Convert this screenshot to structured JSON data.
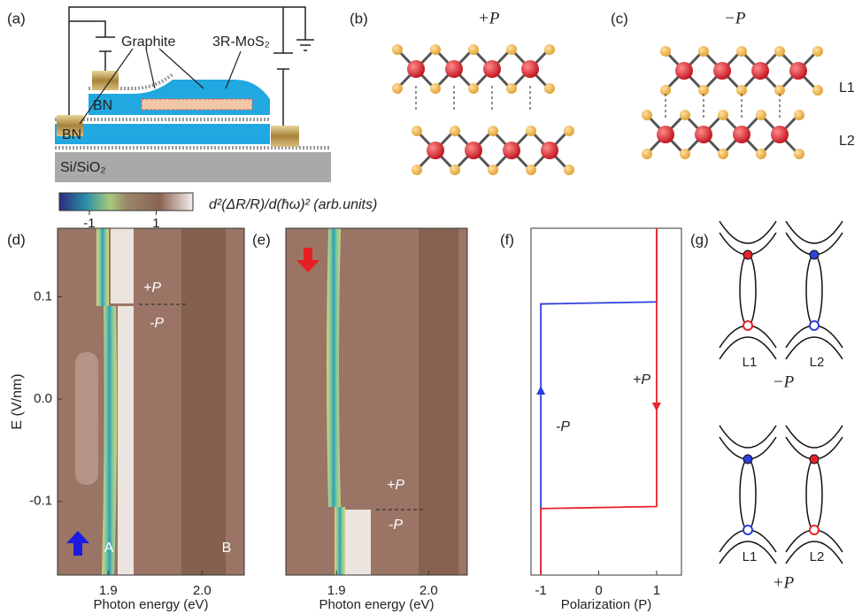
{
  "panel_labels": [
    "(a)",
    "(b)",
    "(c)",
    "(d)",
    "(e)",
    "(f)",
    "(g)"
  ],
  "schematic": {
    "graphite": "Graphite",
    "mos2": "3R-MoS₂",
    "bn_top": "BN",
    "bn_bottom": "BN",
    "substrate": "Si/SiO₂"
  },
  "structures": {
    "b_title": "+P",
    "c_title": "−P",
    "layer1": "L1",
    "layer2": "L2"
  },
  "colorbar": {
    "label": "d²(ΔR/R)/d(ħω)² (arb.units)",
    "lim": [
      -1.9,
      2.1
    ],
    "ticks": [
      -1,
      1
    ]
  },
  "heatmaps": [
    {
      "xlim": [
        1.846,
        2.045
      ],
      "ylim": [
        -0.172,
        0.167
      ],
      "xticks": [
        1.9,
        {
          "value": 2,
          "label": "2.0"
        }
      ],
      "yticks": [
        0.1,
        {
          "value": 0,
          "label": "0.0"
        },
        -0.1
      ],
      "ylabel": "E (V/nm)",
      "xlabel": "Photon energy (eV)",
      "annotations": [
        "+P",
        "-P",
        "A",
        "B"
      ]
    },
    {
      "xlim": [
        1.845,
        2.042
      ],
      "ylim": [
        -0.172,
        0.167
      ],
      "xticks": [
        1.9,
        {
          "value": 2,
          "label": "2.0"
        }
      ],
      "xlabel": "Photon energy (eV)",
      "annotations": [
        "+P",
        "-P"
      ]
    }
  ],
  "chart_data": {
    "type": "line",
    "xlabel": "Polarization (P)",
    "xlim": [
      -1.17,
      1.43
    ],
    "ylim": [
      -0.172,
      0.167
    ],
    "xticks": [
      -1,
      0,
      1
    ],
    "series": [
      {
        "color": "#2f3fdc",
        "x": [
          -1,
          -1,
          1,
          1
        ],
        "values": [
          -0.172,
          0.093,
          0.095,
          0.167
        ]
      },
      {
        "color": "#e8242a",
        "x": [
          1,
          1,
          -1,
          -1
        ],
        "values": [
          0.167,
          -0.105,
          -0.107,
          -0.172
        ]
      }
    ],
    "annotations": [
      "+P",
      "-P"
    ]
  },
  "band_diagrams": {
    "layers": [
      "L1",
      "L2",
      "L1",
      "L2"
    ],
    "states": [
      "−P",
      "+P"
    ]
  }
}
